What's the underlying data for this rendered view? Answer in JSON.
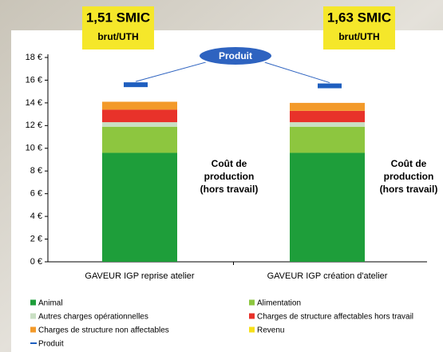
{
  "chart_data": {
    "type": "bar",
    "stacked": true,
    "categories": [
      "GAVEUR IGP reprise atelier",
      "GAVEUR IGP création d'atelier"
    ],
    "series": [
      {
        "name": "Animal",
        "color": "#1e9e3a",
        "values": [
          9.6,
          9.6
        ]
      },
      {
        "name": "Alimentation",
        "color": "#8dc63f",
        "values": [
          2.3,
          2.3
        ]
      },
      {
        "name": "Autres charges opérationnelles",
        "color": "#c9dfc3",
        "values": [
          0.4,
          0.4
        ]
      },
      {
        "name": "Charges de structure affectables hors travail",
        "color": "#e8322a",
        "values": [
          1.1,
          1.0
        ]
      },
      {
        "name": "Charges de structure non affectables",
        "color": "#f39a2a",
        "values": [
          0.7,
          0.7
        ]
      },
      {
        "name": "Revenu",
        "color": "#f7e01a",
        "values": [
          null,
          null
        ]
      },
      {
        "name": "Produit",
        "color": "#1f5fbf",
        "type": "marker",
        "values": [
          15.6,
          15.5
        ]
      }
    ],
    "ylim": [
      0,
      18
    ],
    "yticks": [
      {
        "value": 0,
        "label": "0 €"
      },
      {
        "value": 2,
        "label": "2 €"
      },
      {
        "value": 4,
        "label": "4 €"
      },
      {
        "value": 6,
        "label": "6 €"
      },
      {
        "value": 8,
        "label": "8 €"
      },
      {
        "value": 10,
        "label": "10 €"
      },
      {
        "value": 12,
        "label": "12 €"
      },
      {
        "value": 14,
        "label": "14 €"
      },
      {
        "value": 16,
        "label": "16 €"
      },
      {
        "value": 18,
        "label": "18 €"
      }
    ],
    "badges": [
      {
        "text": "1,51 SMIC",
        "subtext": "brut/UTH"
      },
      {
        "text": "1,63 SMIC",
        "subtext": "brut/UTH"
      }
    ],
    "cost_label": [
      "Coût de",
      "production",
      "(hors travail)"
    ]
  }
}
